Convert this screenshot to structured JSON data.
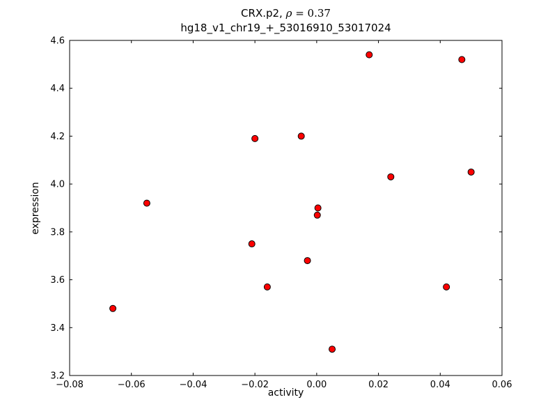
{
  "figure": {
    "title_prefix": "CRX.p2, ",
    "title_rho": "ρ",
    "title_rho_value": " = 0.37",
    "title_line2": "hg18_v1_chr19_+_53016910_53017024",
    "xlabel": "activity",
    "ylabel": "expression"
  },
  "chart_data": {
    "type": "scatter",
    "title": "CRX.p2, ρ = 0.37",
    "subtitle": "hg18_v1_chr19_+_53016910_53017024",
    "xlabel": "activity",
    "ylabel": "expression",
    "xlim": [
      -0.08,
      0.06
    ],
    "ylim": [
      3.2,
      4.6
    ],
    "grid": false,
    "legend": "none",
    "xtick_values": [
      -0.08,
      -0.06,
      -0.04,
      -0.02,
      0.0,
      0.02,
      0.04,
      0.06
    ],
    "xtick_labels": [
      "−0.08",
      "−0.06",
      "−0.04",
      "−0.02",
      "0.00",
      "0.02",
      "0.04",
      "0.06"
    ],
    "ytick_values": [
      3.2,
      3.4,
      3.6,
      3.8,
      4.0,
      4.2,
      4.4,
      4.6
    ],
    "ytick_labels": [
      "3.2",
      "3.4",
      "3.6",
      "3.8",
      "4.0",
      "4.2",
      "4.4",
      "4.6"
    ],
    "marker": {
      "shape": "circle",
      "fill_color": "#ff0000",
      "edge_color": "#000000",
      "radius_px": 4.5
    },
    "points": [
      {
        "x": -0.066,
        "y": 3.48
      },
      {
        "x": -0.055,
        "y": 3.92
      },
      {
        "x": -0.021,
        "y": 3.75
      },
      {
        "x": -0.02,
        "y": 4.19
      },
      {
        "x": -0.016,
        "y": 3.57
      },
      {
        "x": -0.005,
        "y": 4.2
      },
      {
        "x": -0.003,
        "y": 3.68
      },
      {
        "x": 0.0004,
        "y": 3.9
      },
      {
        "x": 0.0002,
        "y": 3.87
      },
      {
        "x": 0.005,
        "y": 3.31
      },
      {
        "x": 0.017,
        "y": 4.54
      },
      {
        "x": 0.024,
        "y": 4.03
      },
      {
        "x": 0.042,
        "y": 3.57
      },
      {
        "x": 0.047,
        "y": 4.52
      },
      {
        "x": 0.05,
        "y": 4.05
      }
    ]
  }
}
